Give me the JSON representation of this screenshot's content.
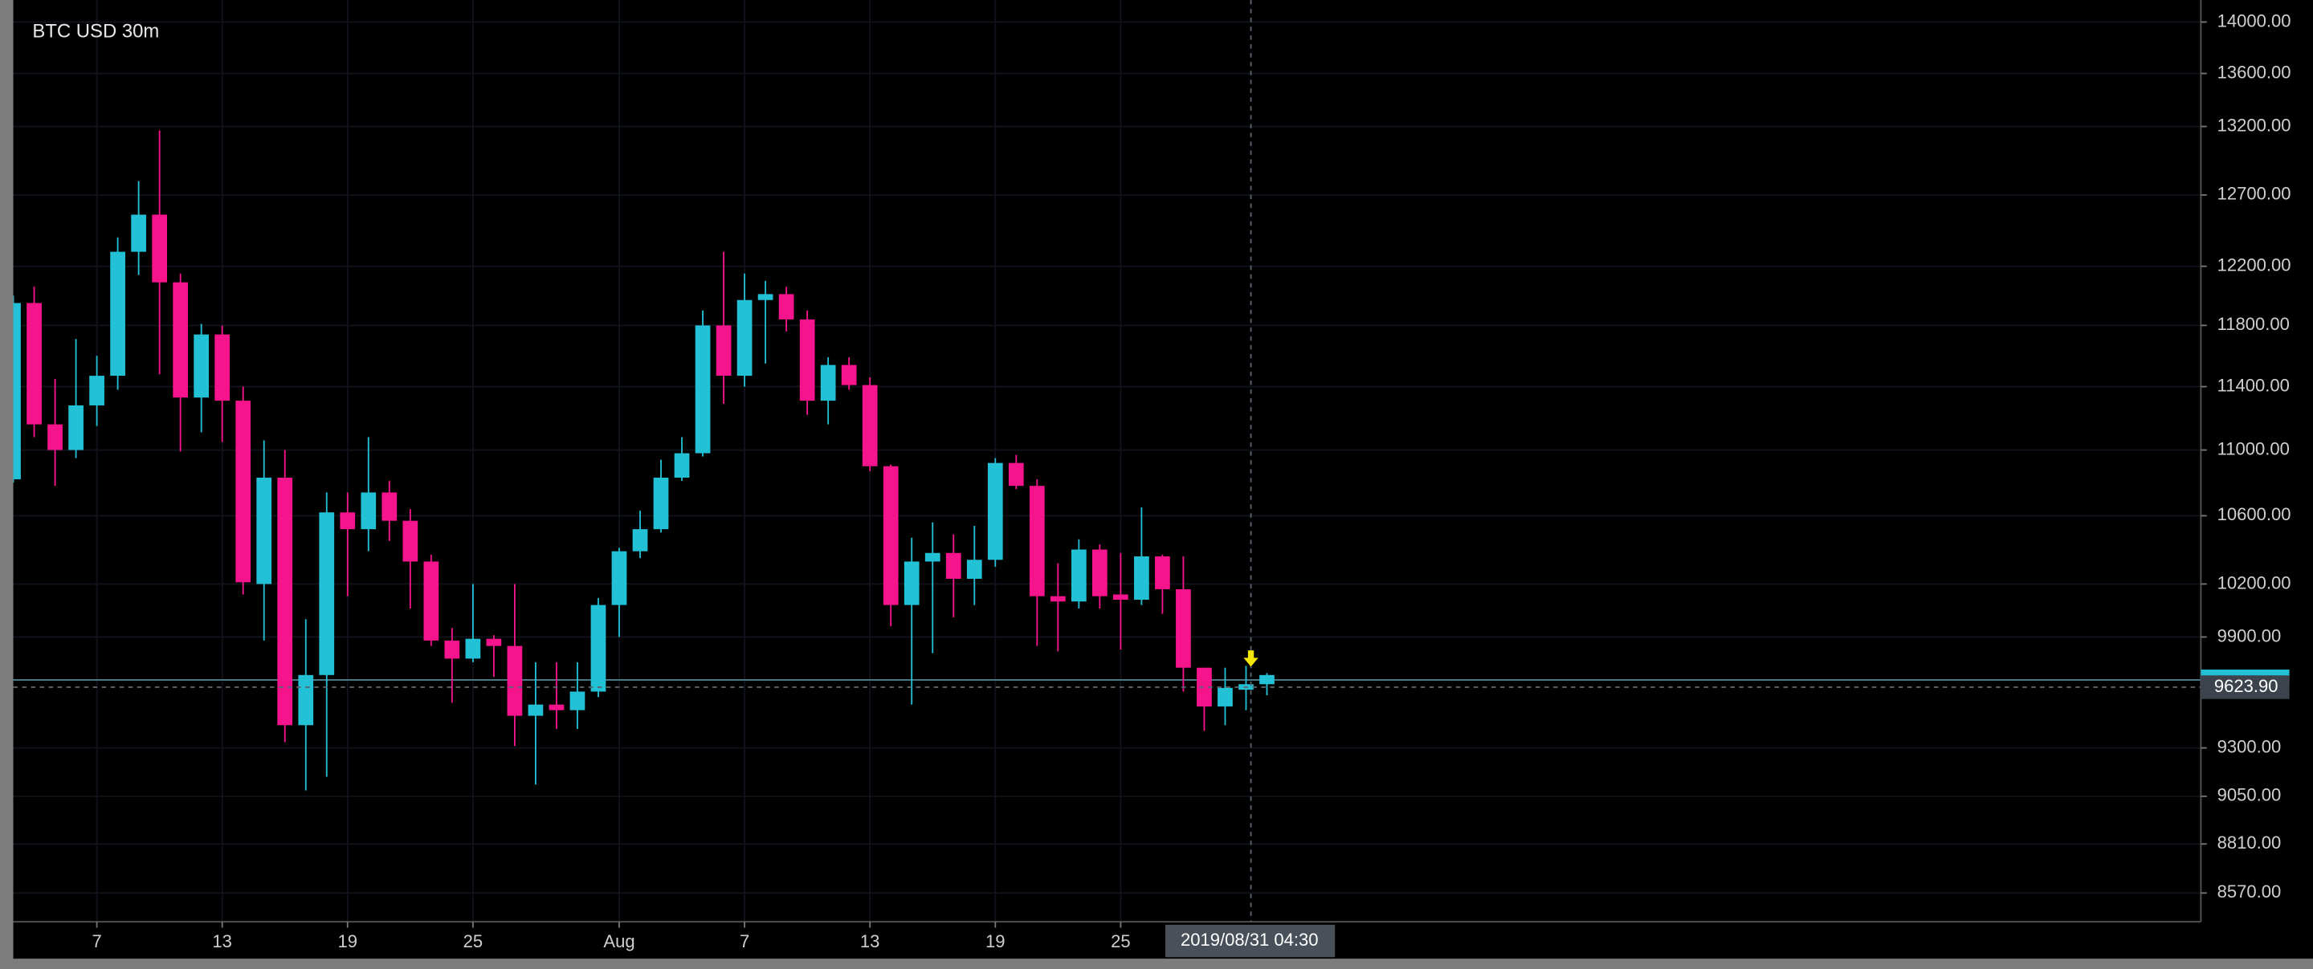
{
  "chart_data": {
    "type": "candlestick",
    "title": "BTC USD 30m",
    "x": [
      0,
      1,
      2,
      3,
      4,
      5,
      6,
      7,
      8,
      9,
      10,
      11,
      12,
      13,
      14,
      15,
      16,
      17,
      18,
      19,
      20,
      21,
      22,
      23,
      24,
      25,
      26,
      27,
      28,
      29,
      30,
      31,
      32,
      33,
      34,
      35,
      36,
      37,
      38,
      39,
      40,
      41,
      42,
      43,
      44,
      45,
      46,
      47,
      48,
      49,
      50,
      51,
      52,
      53,
      54,
      55,
      56,
      57,
      58,
      59,
      60
    ],
    "open": [
      10820,
      11950,
      11160,
      11000,
      11280,
      11470,
      12300,
      12560,
      12090,
      11330,
      11740,
      11310,
      10200,
      10830,
      9420,
      9690,
      10620,
      10520,
      10740,
      10570,
      10330,
      9880,
      9780,
      9890,
      9850,
      9470,
      9530,
      9500,
      9600,
      10080,
      10390,
      10520,
      10830,
      10980,
      11800,
      11470,
      11970,
      12010,
      11840,
      11310,
      11540,
      11410,
      10900,
      10080,
      10330,
      10380,
      10230,
      10340,
      10920,
      10780,
      10130,
      10100,
      10400,
      10140,
      10110,
      10360,
      10170,
      9730,
      9520,
      9610,
      9640
    ],
    "high": [
      12000,
      12060,
      11450,
      11710,
      11600,
      12400,
      12800,
      13170,
      12150,
      11810,
      11800,
      11400,
      11060,
      11000,
      10000,
      10740,
      10740,
      11080,
      10810,
      10640,
      10370,
      9950,
      10200,
      9910,
      10200,
      9760,
      9760,
      9760,
      10120,
      10410,
      10630,
      10940,
      11080,
      11900,
      12300,
      12150,
      12100,
      12060,
      11900,
      11590,
      11590,
      11460,
      10910,
      10470,
      10560,
      10490,
      10540,
      10950,
      10970,
      10820,
      10320,
      10460,
      10430,
      10380,
      10650,
      10370,
      10360,
      9730,
      9730,
      9740,
      9700
    ],
    "low": [
      10800,
      11080,
      10780,
      10950,
      11150,
      11380,
      12140,
      11480,
      10990,
      11110,
      11050,
      10140,
      9880,
      9330,
      9080,
      9150,
      10130,
      10390,
      10450,
      10060,
      9850,
      9540,
      9760,
      9680,
      9310,
      9110,
      9400,
      9400,
      9570,
      9900,
      10350,
      10500,
      10810,
      10960,
      11290,
      11400,
      11550,
      11760,
      11220,
      11160,
      11380,
      10870,
      9960,
      9530,
      9810,
      10010,
      10080,
      10300,
      10760,
      9850,
      9820,
      10060,
      10060,
      9830,
      10080,
      10030,
      9600,
      9390,
      9420,
      9500,
      9580
    ],
    "close": [
      11950,
      11160,
      11000,
      11280,
      11470,
      12300,
      12560,
      12090,
      11330,
      11740,
      11310,
      10210,
      10830,
      9420,
      9690,
      10620,
      10520,
      10740,
      10570,
      10330,
      9880,
      9780,
      9890,
      9850,
      9470,
      9530,
      9500,
      9600,
      10080,
      10390,
      10520,
      10830,
      10980,
      11800,
      11470,
      11970,
      12010,
      11840,
      11310,
      11540,
      11410,
      10900,
      10080,
      10330,
      10380,
      10230,
      10340,
      10920,
      10780,
      10130,
      10100,
      10400,
      10130,
      10110,
      10360,
      10170,
      9730,
      9520,
      9620,
      9640,
      9690
    ],
    "up_color": "#22c1d6",
    "down_color": "#f5148c",
    "xlim": [
      0,
      104.7
    ],
    "xticks": [
      {
        "value": 4,
        "label": "7"
      },
      {
        "value": 10,
        "label": "13"
      },
      {
        "value": 16,
        "label": "19"
      },
      {
        "value": 22,
        "label": "25"
      },
      {
        "value": 29,
        "label": "Aug"
      },
      {
        "value": 35,
        "label": "7"
      },
      {
        "value": 41,
        "label": "13"
      },
      {
        "value": 47,
        "label": "19"
      },
      {
        "value": 53,
        "label": "25"
      }
    ],
    "ylim": [
      8432,
      14175
    ],
    "log_scale": true,
    "yticks": [
      {
        "value": 14000,
        "label": "14000.00"
      },
      {
        "value": 13600,
        "label": "13600.00"
      },
      {
        "value": 13200,
        "label": "13200.00"
      },
      {
        "value": 12700,
        "label": "12700.00"
      },
      {
        "value": 12200,
        "label": "12200.00"
      },
      {
        "value": 11800,
        "label": "11800.00"
      },
      {
        "value": 11400,
        "label": "11400.00"
      },
      {
        "value": 11000,
        "label": "11000.00"
      },
      {
        "value": 10600,
        "label": "10600.00"
      },
      {
        "value": 10200,
        "label": "10200.00"
      },
      {
        "value": 9900,
        "label": "9900.00"
      },
      {
        "value": 9300,
        "label": "9300.00"
      },
      {
        "value": 9050,
        "label": "9050.00"
      },
      {
        "value": 8810,
        "label": "8810.00"
      },
      {
        "value": 8570,
        "label": "8570.00"
      }
    ],
    "crosshair": {
      "time_label": "2019/08/31 04:30",
      "price": {
        "value": 9623.9,
        "label": "9623.90"
      }
    }
  }
}
